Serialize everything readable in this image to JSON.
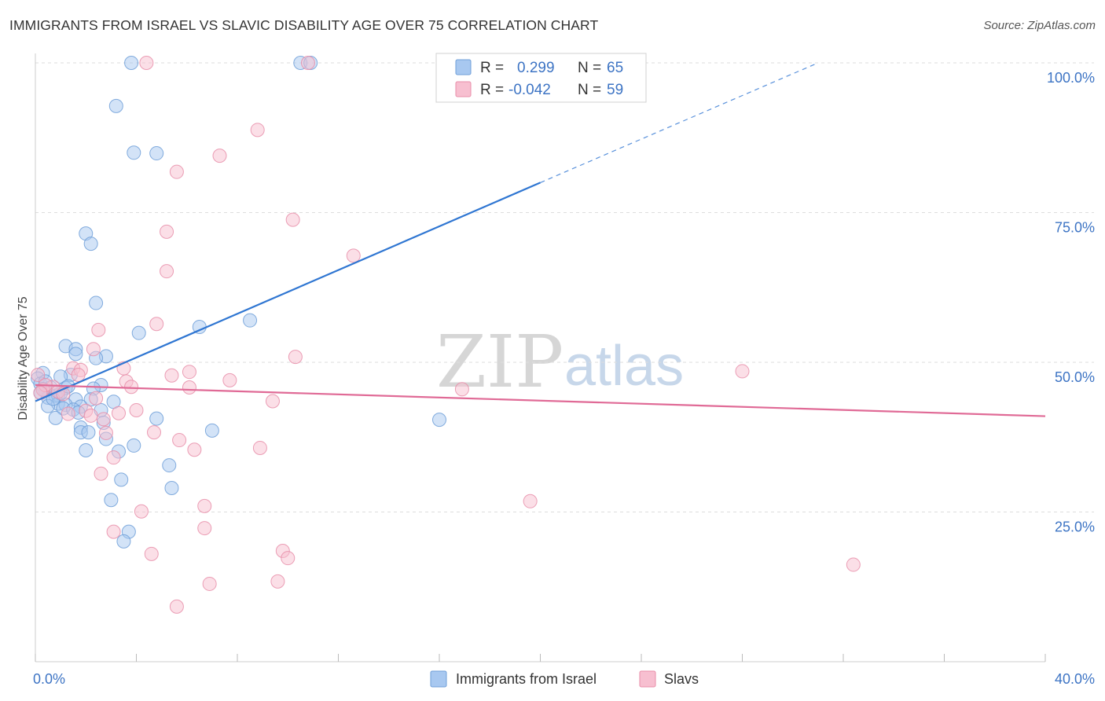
{
  "title": "IMMIGRANTS FROM ISRAEL VS SLAVIC DISABILITY AGE OVER 75 CORRELATION CHART",
  "source": "Source: ZipAtlas.com",
  "watermark": {
    "zip": "ZIP",
    "atlas": "atlas"
  },
  "colors": {
    "blue_fill": "#a8c8f0",
    "blue_stroke": "#6f9fd8",
    "blue_line": "#2f76d2",
    "pink_fill": "#f7bfd0",
    "pink_stroke": "#e88ea9",
    "pink_line": "#e06a96",
    "axis_text": "#3d74c4",
    "grid": "#dddddd"
  },
  "legend": {
    "rows": [
      {
        "r_label": "R =",
        "r_value": "0.299",
        "n_label": "N =",
        "n_value": "65"
      },
      {
        "r_label": "R =",
        "r_value": "-0.042",
        "n_label": "N =",
        "n_value": "59"
      }
    ]
  },
  "chart_data": {
    "type": "scatter",
    "title": "IMMIGRANTS FROM ISRAEL VS SLAVIC DISABILITY AGE OVER 75 CORRELATION CHART",
    "xlabel": "",
    "ylabel": "Disability Age Over 75",
    "xlim": [
      0,
      40
    ],
    "ylim": [
      0,
      100
    ],
    "x_tick_labels": [
      "0.0%",
      "40.0%"
    ],
    "y_ticks": [
      25,
      50,
      75,
      100
    ],
    "y_tick_labels": [
      "25.0%",
      "50.0%",
      "75.0%",
      "100.0%"
    ],
    "grid": true,
    "legend_position": "top-center",
    "series": [
      {
        "name": "Immigrants from Israel",
        "R": 0.299,
        "N": 65,
        "trend": {
          "x0": 0,
          "y0": 43.5,
          "x1": 20,
          "y1": 80,
          "dashed_to_x": 31,
          "dashed_to_y": 100
        },
        "points": [
          [
            3.8,
            100
          ],
          [
            10.5,
            100
          ],
          [
            10.9,
            100
          ],
          [
            3.2,
            92.8
          ],
          [
            3.9,
            85.0
          ],
          [
            4.8,
            84.9
          ],
          [
            2.0,
            71.5
          ],
          [
            2.2,
            69.8
          ],
          [
            2.4,
            59.9
          ],
          [
            8.5,
            57.0
          ],
          [
            6.5,
            55.9
          ],
          [
            4.1,
            54.9
          ],
          [
            1.2,
            52.7
          ],
          [
            1.6,
            52.2
          ],
          [
            1.6,
            51.4
          ],
          [
            2.8,
            51.0
          ],
          [
            2.4,
            50.7
          ],
          [
            0.3,
            48.2
          ],
          [
            1.4,
            47.9
          ],
          [
            1.0,
            47.6
          ],
          [
            0.1,
            47.3
          ],
          [
            0.2,
            46.4
          ],
          [
            2.6,
            46.2
          ],
          [
            0.6,
            45.8
          ],
          [
            1.2,
            45.7
          ],
          [
            2.3,
            45.6
          ],
          [
            0.4,
            45.2
          ],
          [
            0.2,
            44.9
          ],
          [
            0.8,
            44.4
          ],
          [
            0.5,
            44.1
          ],
          [
            0.9,
            44.5
          ],
          [
            1.6,
            43.8
          ],
          [
            2.2,
            43.8
          ],
          [
            3.1,
            43.4
          ],
          [
            0.9,
            43.1
          ],
          [
            1.2,
            42.9
          ],
          [
            0.5,
            42.7
          ],
          [
            1.8,
            42.6
          ],
          [
            1.1,
            42.3
          ],
          [
            1.5,
            42.1
          ],
          [
            1.7,
            41.6
          ],
          [
            2.6,
            42.0
          ],
          [
            0.8,
            40.7
          ],
          [
            4.8,
            40.6
          ],
          [
            16.0,
            40.4
          ],
          [
            2.7,
            39.9
          ],
          [
            1.8,
            39.1
          ],
          [
            1.8,
            38.3
          ],
          [
            2.1,
            38.3
          ],
          [
            7.0,
            38.6
          ],
          [
            2.8,
            37.2
          ],
          [
            3.9,
            36.1
          ],
          [
            2.0,
            35.3
          ],
          [
            3.3,
            35.1
          ],
          [
            5.3,
            32.8
          ],
          [
            3.4,
            30.4
          ],
          [
            5.4,
            29.0
          ],
          [
            3.0,
            27.0
          ],
          [
            3.7,
            21.7
          ],
          [
            3.5,
            20.1
          ],
          [
            0.4,
            46.8
          ],
          [
            1.0,
            44.8
          ],
          [
            0.7,
            43.9
          ],
          [
            1.3,
            46.0
          ],
          [
            0.3,
            45.5
          ]
        ]
      },
      {
        "name": "Slavs",
        "R": -0.042,
        "N": 59,
        "trend": {
          "x0": 0,
          "y0": 46.2,
          "x1": 40,
          "y1": 41.0
        },
        "points": [
          [
            4.4,
            100
          ],
          [
            10.8,
            100
          ],
          [
            8.8,
            88.8
          ],
          [
            7.3,
            84.5
          ],
          [
            5.6,
            81.8
          ],
          [
            10.2,
            73.8
          ],
          [
            5.2,
            71.8
          ],
          [
            12.6,
            67.8
          ],
          [
            5.2,
            65.2
          ],
          [
            2.5,
            55.4
          ],
          [
            4.8,
            56.4
          ],
          [
            2.3,
            52.2
          ],
          [
            10.3,
            50.9
          ],
          [
            3.5,
            49.0
          ],
          [
            1.5,
            49.0
          ],
          [
            1.8,
            48.7
          ],
          [
            6.1,
            48.4
          ],
          [
            5.4,
            47.8
          ],
          [
            0.1,
            47.9
          ],
          [
            1.7,
            47.9
          ],
          [
            7.7,
            47.0
          ],
          [
            3.6,
            46.8
          ],
          [
            3.8,
            45.9
          ],
          [
            6.1,
            45.8
          ],
          [
            16.9,
            45.5
          ],
          [
            0.7,
            45.9
          ],
          [
            0.3,
            45.4
          ],
          [
            0.9,
            45.1
          ],
          [
            9.4,
            43.5
          ],
          [
            4.0,
            42.0
          ],
          [
            2.0,
            41.9
          ],
          [
            3.3,
            41.5
          ],
          [
            1.3,
            41.4
          ],
          [
            2.2,
            41.1
          ],
          [
            2.7,
            40.5
          ],
          [
            4.7,
            38.3
          ],
          [
            2.8,
            38.2
          ],
          [
            5.7,
            37.0
          ],
          [
            8.9,
            35.7
          ],
          [
            6.3,
            35.4
          ],
          [
            3.1,
            34.1
          ],
          [
            2.6,
            31.4
          ],
          [
            19.6,
            26.8
          ],
          [
            6.7,
            26.0
          ],
          [
            4.2,
            25.1
          ],
          [
            6.7,
            22.3
          ],
          [
            3.1,
            21.7
          ],
          [
            4.6,
            18.0
          ],
          [
            9.8,
            18.5
          ],
          [
            10.0,
            17.3
          ],
          [
            32.4,
            16.2
          ],
          [
            6.9,
            13.0
          ],
          [
            9.6,
            13.4
          ],
          [
            5.6,
            9.2
          ],
          [
            28.0,
            48.5
          ],
          [
            0.4,
            46.2
          ],
          [
            1.1,
            44.7
          ],
          [
            2.4,
            44.0
          ],
          [
            0.2,
            44.9
          ]
        ]
      }
    ]
  },
  "bottom_legend": [
    "Immigrants from Israel",
    "Slavs"
  ]
}
